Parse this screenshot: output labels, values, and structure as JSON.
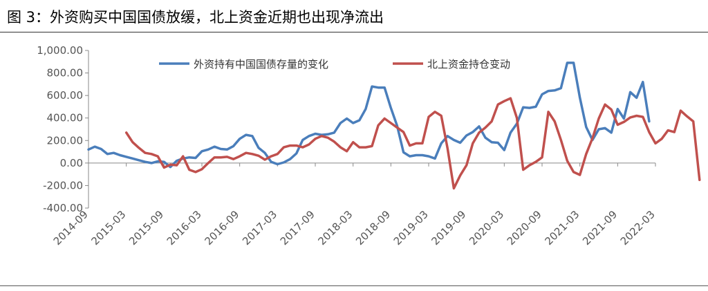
{
  "header": {
    "title": "图 3：外资购买中国国债放缓，北上资金近期也出现净流出"
  },
  "chart_data": {
    "type": "line",
    "title": "",
    "xlabel": "",
    "ylabel": "",
    "ylim": [
      -400,
      1000
    ],
    "y_ticks": [
      -400,
      -200,
      0,
      200,
      400,
      600,
      800,
      1000
    ],
    "y_tick_labels": [
      "-400.00",
      "-200.00",
      "0.00",
      "200.00",
      "400.00",
      "600.00",
      "800.00",
      "1,000.00"
    ],
    "x_start": "2014-09",
    "x_ticks": [
      "2014-09",
      "2015-03",
      "2015-09",
      "2016-03",
      "2016-09",
      "2017-03",
      "2017-09",
      "2018-03",
      "2018-09",
      "2019-03",
      "2019-09",
      "2020-03",
      "2020-09",
      "2021-03",
      "2021-09",
      "2022-03"
    ],
    "legend_position": "top-center",
    "grid": false,
    "series": [
      {
        "name": "外资持有中国国债存量的变化",
        "color": "#4a7ebb",
        "start": "2014-09",
        "values": [
          120,
          145,
          125,
          80,
          90,
          70,
          55,
          40,
          25,
          10,
          0,
          15,
          10,
          -35,
          20,
          40,
          50,
          45,
          105,
          120,
          145,
          125,
          120,
          150,
          215,
          250,
          240,
          135,
          90,
          10,
          -10,
          5,
          35,
          85,
          205,
          240,
          260,
          250,
          255,
          270,
          355,
          395,
          355,
          380,
          480,
          680,
          670,
          670,
          490,
          330,
          95,
          60,
          70,
          70,
          60,
          40,
          175,
          240,
          205,
          180,
          245,
          275,
          325,
          225,
          185,
          180,
          115,
          270,
          350,
          495,
          490,
          500,
          610,
          640,
          645,
          665,
          890,
          890,
          580,
          320,
          205,
          300,
          310,
          270,
          480,
          395,
          630,
          580,
          720,
          370
        ]
      },
      {
        "name": "北上资金持仓变动",
        "color": "#c0504d",
        "start": "2015-03",
        "values": [
          270,
          185,
          135,
          90,
          80,
          60,
          -40,
          -15,
          -20,
          60,
          -60,
          -80,
          -55,
          0,
          50,
          50,
          55,
          35,
          60,
          90,
          80,
          65,
          30,
          60,
          80,
          140,
          155,
          155,
          140,
          165,
          215,
          240,
          225,
          190,
          140,
          105,
          185,
          140,
          140,
          150,
          335,
          395,
          355,
          315,
          275,
          155,
          175,
          175,
          410,
          455,
          420,
          130,
          -225,
          -110,
          -20,
          175,
          270,
          315,
          370,
          520,
          550,
          575,
          400,
          -60,
          -20,
          10,
          50,
          455,
          370,
          205,
          20,
          -80,
          -105,
          80,
          220,
          395,
          520,
          475,
          340,
          365,
          405,
          420,
          410,
          275,
          175,
          215,
          290,
          275,
          465,
          415,
          370,
          -150
        ]
      }
    ]
  }
}
